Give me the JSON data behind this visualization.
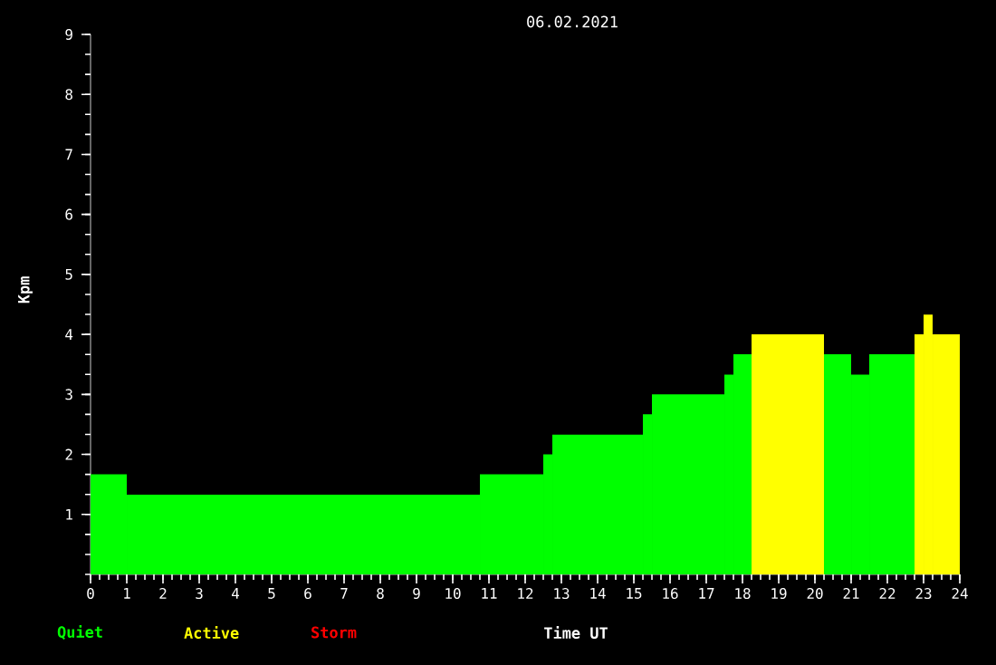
{
  "chart_data": {
    "type": "histogram",
    "title": "06.02.2021",
    "xlabel": "Time UT",
    "ylabel": "Kpm",
    "bins": [
      0,
      1,
      10.75,
      12.5,
      12.75,
      15.25,
      15.5,
      17.5,
      17.75,
      18.25,
      20.25,
      21,
      21.5,
      22.75,
      23,
      23.25,
      24
    ],
    "series": [
      {
        "name": "Quiet",
        "color": "#00ff00",
        "values": [
          1.67,
          1.33,
          1.67,
          2,
          2.33,
          2.67,
          3,
          3.33,
          3.67,
          null,
          3.67,
          3.33,
          3.67,
          null,
          null,
          null
        ]
      },
      {
        "name": "Active",
        "color": "#ffff00",
        "values": [
          null,
          null,
          null,
          null,
          null,
          null,
          null,
          null,
          null,
          4,
          null,
          null,
          null,
          4,
          4.33,
          4
        ]
      }
    ],
    "annotations": [
      "Storm"
    ],
    "xlim": [
      0,
      24
    ],
    "xticks": [
      0,
      1,
      2,
      3,
      4,
      5,
      6,
      7,
      8,
      9,
      10,
      11,
      12,
      13,
      14,
      15,
      16,
      17,
      18,
      19,
      20,
      21,
      22,
      23,
      24
    ],
    "ylim": [
      0,
      9
    ],
    "yticks": [
      1,
      2,
      3,
      4,
      5,
      6,
      7,
      8,
      9
    ],
    "grid": false,
    "legend": "bottom left"
  }
}
